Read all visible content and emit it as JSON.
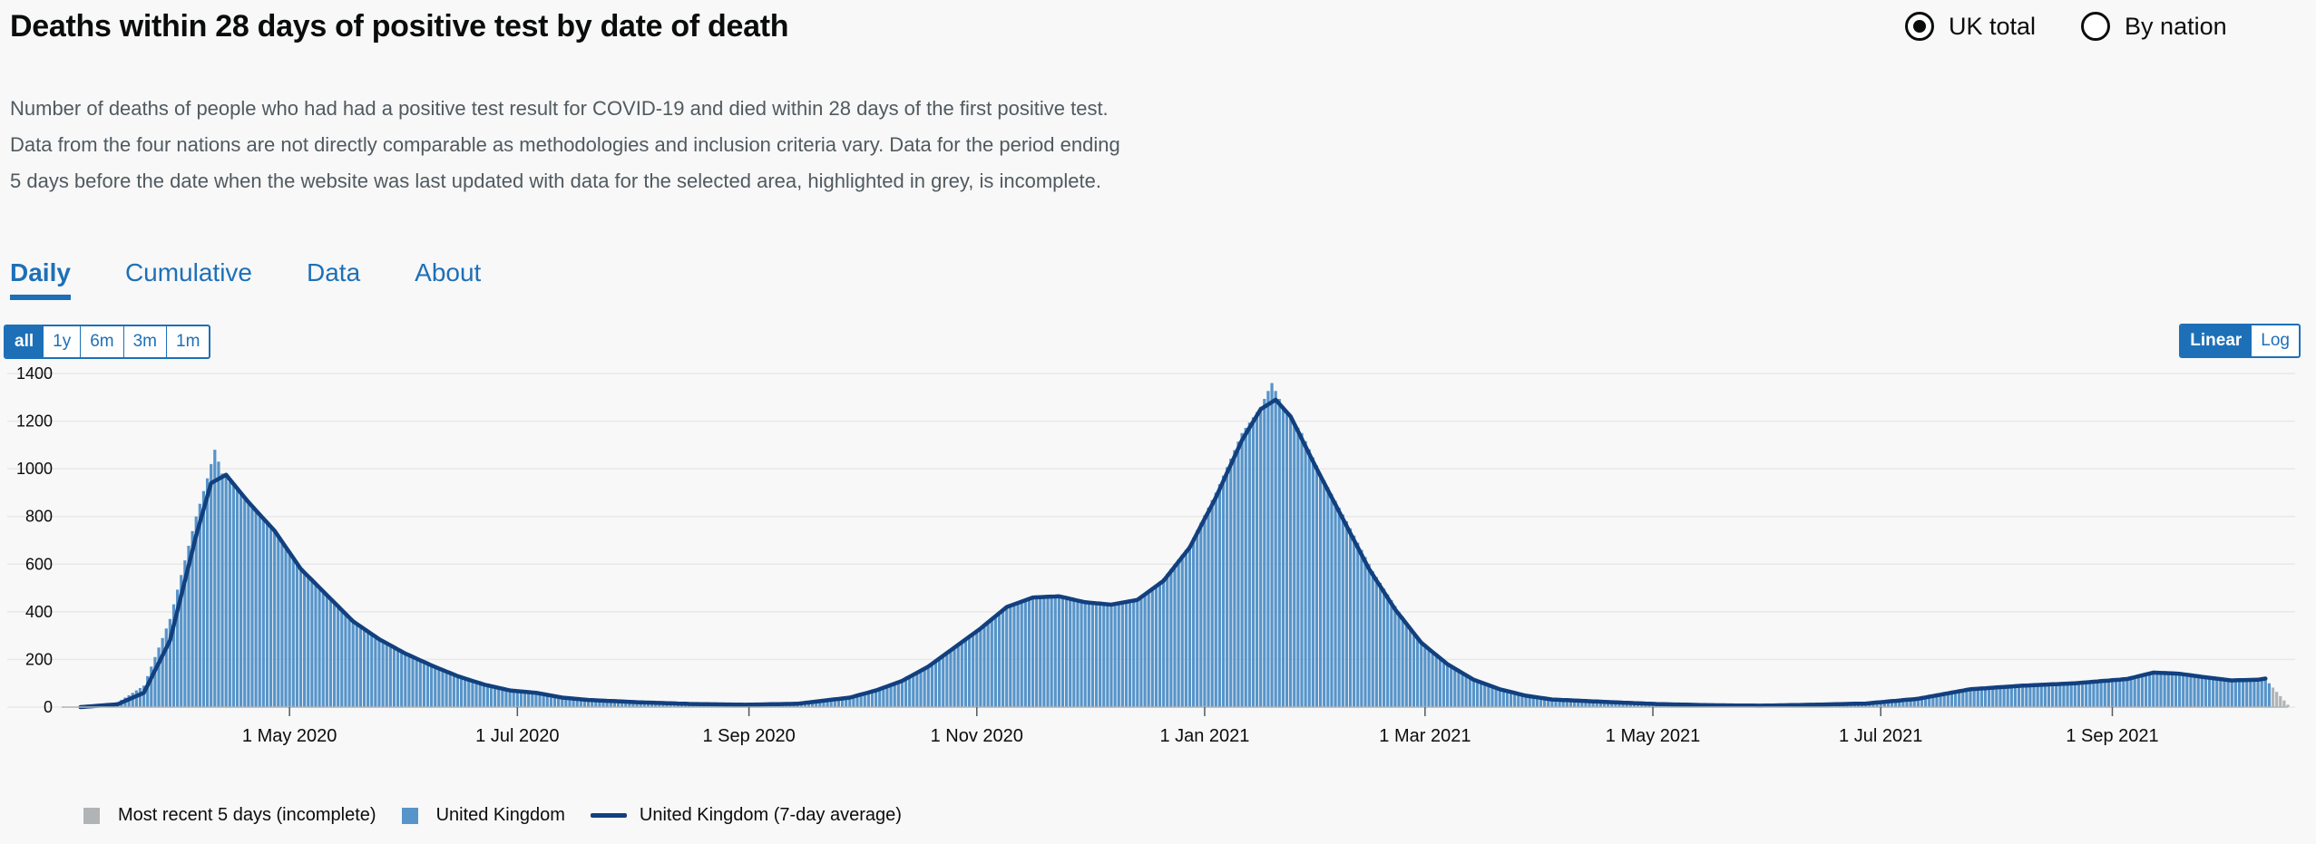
{
  "page": {
    "title": "Deaths within 28 days of positive test by date of death",
    "description": "Number of deaths of people who had had a positive test result for COVID-19 and died within 28 days of the first positive test. Data from the four nations are not directly comparable as methodologies and inclusion criteria vary. Data for the period ending 5 days before the date when the website was last updated with data for the selected area, highlighted in grey, is incomplete."
  },
  "area_options": [
    {
      "label": "UK total",
      "selected": true
    },
    {
      "label": "By nation",
      "selected": false
    }
  ],
  "tabs": [
    {
      "label": "Daily",
      "active": true
    },
    {
      "label": "Cumulative",
      "active": false
    },
    {
      "label": "Data",
      "active": false
    },
    {
      "label": "About",
      "active": false
    }
  ],
  "time_range": [
    {
      "label": "all",
      "active": true
    },
    {
      "label": "1y",
      "active": false
    },
    {
      "label": "6m",
      "active": false
    },
    {
      "label": "3m",
      "active": false
    },
    {
      "label": "1m",
      "active": false
    }
  ],
  "scale": [
    {
      "label": "Linear",
      "active": true
    },
    {
      "label": "Log",
      "active": false
    }
  ],
  "colors": {
    "bar": "#5694ca",
    "bar_edge": "#1d70b8",
    "line": "#12407f",
    "incomplete": "#b1b4b6",
    "grid": "#e8e8e8",
    "link": "#1d70b8"
  },
  "chart_data": {
    "type": "bar",
    "title": "Deaths within 28 days of positive test by date of death",
    "xlabel": "",
    "ylabel": "",
    "x_range": [
      "2020-03-01",
      "2021-10-18"
    ],
    "ylim": [
      0,
      1400
    ],
    "yticks": [
      "0",
      "200",
      "400",
      "600",
      "800",
      "1000",
      "1200",
      "1400"
    ],
    "xticks": [
      {
        "date": "2020-05-01",
        "label": "1 May 2020"
      },
      {
        "date": "2020-07-01",
        "label": "1 Jul 2020"
      },
      {
        "date": "2020-09-01",
        "label": "1 Sep 2020"
      },
      {
        "date": "2020-11-01",
        "label": "1 Nov 2020"
      },
      {
        "date": "2021-01-01",
        "label": "1 Jan 2021"
      },
      {
        "date": "2021-03-01",
        "label": "1 Mar 2021"
      },
      {
        "date": "2021-05-01",
        "label": "1 May 2021"
      },
      {
        "date": "2021-07-01",
        "label": "1 Jul 2021"
      },
      {
        "date": "2021-09-01",
        "label": "1 Sep 2021"
      }
    ],
    "grid": true,
    "legend_position": "bottom-left",
    "incomplete_days": 5,
    "series": [
      {
        "name": "Most recent 5 days (incomplete)",
        "kind": "bar"
      },
      {
        "name": "United Kingdom",
        "kind": "bar"
      },
      {
        "name": "United Kingdom (7-day average)",
        "kind": "line"
      }
    ],
    "daily_deaths": [
      {
        "date": "2020-03-02",
        "value": 0
      },
      {
        "date": "2020-03-09",
        "value": 3
      },
      {
        "date": "2020-03-16",
        "value": 20
      },
      {
        "date": "2020-03-23",
        "value": 90
      },
      {
        "date": "2020-03-30",
        "value": 370
      },
      {
        "date": "2020-04-06",
        "value": 800
      },
      {
        "date": "2020-04-09",
        "value": 960
      },
      {
        "date": "2020-04-11",
        "value": 1080
      },
      {
        "date": "2020-04-13",
        "value": 980
      },
      {
        "date": "2020-04-20",
        "value": 860
      },
      {
        "date": "2020-04-27",
        "value": 740
      },
      {
        "date": "2020-05-04",
        "value": 580
      },
      {
        "date": "2020-05-11",
        "value": 470
      },
      {
        "date": "2020-05-18",
        "value": 360
      },
      {
        "date": "2020-05-25",
        "value": 290
      },
      {
        "date": "2020-06-01",
        "value": 230
      },
      {
        "date": "2020-06-08",
        "value": 175
      },
      {
        "date": "2020-06-15",
        "value": 130
      },
      {
        "date": "2020-06-22",
        "value": 95
      },
      {
        "date": "2020-06-29",
        "value": 70
      },
      {
        "date": "2020-07-06",
        "value": 52
      },
      {
        "date": "2020-07-13",
        "value": 38
      },
      {
        "date": "2020-07-20",
        "value": 28
      },
      {
        "date": "2020-08-03",
        "value": 18
      },
      {
        "date": "2020-08-17",
        "value": 12
      },
      {
        "date": "2020-08-31",
        "value": 10
      },
      {
        "date": "2020-09-14",
        "value": 15
      },
      {
        "date": "2020-09-28",
        "value": 45
      },
      {
        "date": "2020-10-05",
        "value": 70
      },
      {
        "date": "2020-10-12",
        "value": 110
      },
      {
        "date": "2020-10-19",
        "value": 170
      },
      {
        "date": "2020-10-26",
        "value": 250
      },
      {
        "date": "2020-11-02",
        "value": 330
      },
      {
        "date": "2020-11-07",
        "value": 400
      },
      {
        "date": "2020-11-16",
        "value": 460
      },
      {
        "date": "2020-11-23",
        "value": 470
      },
      {
        "date": "2020-11-30",
        "value": 440
      },
      {
        "date": "2020-12-07",
        "value": 430
      },
      {
        "date": "2020-12-14",
        "value": 450
      },
      {
        "date": "2020-12-21",
        "value": 540
      },
      {
        "date": "2020-12-28",
        "value": 680
      },
      {
        "date": "2021-01-04",
        "value": 900
      },
      {
        "date": "2021-01-11",
        "value": 1150
      },
      {
        "date": "2021-01-16",
        "value": 1260
      },
      {
        "date": "2021-01-19",
        "value": 1360
      },
      {
        "date": "2021-01-22",
        "value": 1260
      },
      {
        "date": "2021-01-27",
        "value": 1150
      },
      {
        "date": "2021-02-01",
        "value": 980
      },
      {
        "date": "2021-02-08",
        "value": 780
      },
      {
        "date": "2021-02-15",
        "value": 570
      },
      {
        "date": "2021-02-22",
        "value": 400
      },
      {
        "date": "2021-03-01",
        "value": 250
      },
      {
        "date": "2021-03-08",
        "value": 170
      },
      {
        "date": "2021-03-15",
        "value": 110
      },
      {
        "date": "2021-03-22",
        "value": 70
      },
      {
        "date": "2021-03-29",
        "value": 45
      },
      {
        "date": "2021-04-05",
        "value": 30
      },
      {
        "date": "2021-04-19",
        "value": 20
      },
      {
        "date": "2021-05-03",
        "value": 12
      },
      {
        "date": "2021-05-17",
        "value": 8
      },
      {
        "date": "2021-05-31",
        "value": 6
      },
      {
        "date": "2021-06-14",
        "value": 10
      },
      {
        "date": "2021-06-28",
        "value": 15
      },
      {
        "date": "2021-07-12",
        "value": 35
      },
      {
        "date": "2021-07-26",
        "value": 75
      },
      {
        "date": "2021-08-09",
        "value": 90
      },
      {
        "date": "2021-08-23",
        "value": 100
      },
      {
        "date": "2021-09-06",
        "value": 120
      },
      {
        "date": "2021-09-13",
        "value": 150
      },
      {
        "date": "2021-09-20",
        "value": 140
      },
      {
        "date": "2021-09-27",
        "value": 125
      },
      {
        "date": "2021-10-04",
        "value": 110
      },
      {
        "date": "2021-10-11",
        "value": 125
      },
      {
        "date": "2021-10-13",
        "value": 100
      },
      {
        "date": "2021-10-18",
        "value": 10
      }
    ],
    "rolling_average": [
      {
        "date": "2020-03-06",
        "value": 0
      },
      {
        "date": "2020-03-16",
        "value": 12
      },
      {
        "date": "2020-03-23",
        "value": 60
      },
      {
        "date": "2020-03-30",
        "value": 280
      },
      {
        "date": "2020-04-06",
        "value": 720
      },
      {
        "date": "2020-04-10",
        "value": 940
      },
      {
        "date": "2020-04-14",
        "value": 975
      },
      {
        "date": "2020-04-20",
        "value": 860
      },
      {
        "date": "2020-04-27",
        "value": 740
      },
      {
        "date": "2020-05-04",
        "value": 580
      },
      {
        "date": "2020-05-11",
        "value": 470
      },
      {
        "date": "2020-05-18",
        "value": 360
      },
      {
        "date": "2020-05-25",
        "value": 285
      },
      {
        "date": "2020-06-01",
        "value": 225
      },
      {
        "date": "2020-06-08",
        "value": 175
      },
      {
        "date": "2020-06-15",
        "value": 130
      },
      {
        "date": "2020-06-22",
        "value": 95
      },
      {
        "date": "2020-06-29",
        "value": 70
      },
      {
        "date": "2020-07-06",
        "value": 60
      },
      {
        "date": "2020-07-13",
        "value": 40
      },
      {
        "date": "2020-07-20",
        "value": 30
      },
      {
        "date": "2020-08-03",
        "value": 20
      },
      {
        "date": "2020-08-17",
        "value": 13
      },
      {
        "date": "2020-08-31",
        "value": 10
      },
      {
        "date": "2020-09-14",
        "value": 14
      },
      {
        "date": "2020-09-28",
        "value": 40
      },
      {
        "date": "2020-10-05",
        "value": 70
      },
      {
        "date": "2020-10-12",
        "value": 110
      },
      {
        "date": "2020-10-19",
        "value": 170
      },
      {
        "date": "2020-10-26",
        "value": 250
      },
      {
        "date": "2020-11-02",
        "value": 330
      },
      {
        "date": "2020-11-09",
        "value": 420
      },
      {
        "date": "2020-11-16",
        "value": 460
      },
      {
        "date": "2020-11-23",
        "value": 465
      },
      {
        "date": "2020-11-30",
        "value": 440
      },
      {
        "date": "2020-12-07",
        "value": 430
      },
      {
        "date": "2020-12-14",
        "value": 450
      },
      {
        "date": "2020-12-21",
        "value": 530
      },
      {
        "date": "2020-12-28",
        "value": 670
      },
      {
        "date": "2021-01-04",
        "value": 880
      },
      {
        "date": "2021-01-11",
        "value": 1120
      },
      {
        "date": "2021-01-16",
        "value": 1250
      },
      {
        "date": "2021-01-20",
        "value": 1290
      },
      {
        "date": "2021-01-24",
        "value": 1220
      },
      {
        "date": "2021-01-31",
        "value": 1000
      },
      {
        "date": "2021-02-07",
        "value": 790
      },
      {
        "date": "2021-02-14",
        "value": 580
      },
      {
        "date": "2021-02-21",
        "value": 410
      },
      {
        "date": "2021-02-28",
        "value": 270
      },
      {
        "date": "2021-03-07",
        "value": 180
      },
      {
        "date": "2021-03-14",
        "value": 115
      },
      {
        "date": "2021-03-21",
        "value": 75
      },
      {
        "date": "2021-03-28",
        "value": 48
      },
      {
        "date": "2021-04-04",
        "value": 32
      },
      {
        "date": "2021-04-18",
        "value": 22
      },
      {
        "date": "2021-05-02",
        "value": 13
      },
      {
        "date": "2021-05-16",
        "value": 8
      },
      {
        "date": "2021-05-30",
        "value": 6
      },
      {
        "date": "2021-06-13",
        "value": 10
      },
      {
        "date": "2021-06-27",
        "value": 15
      },
      {
        "date": "2021-07-11",
        "value": 35
      },
      {
        "date": "2021-07-25",
        "value": 75
      },
      {
        "date": "2021-08-08",
        "value": 90
      },
      {
        "date": "2021-08-22",
        "value": 100
      },
      {
        "date": "2021-09-05",
        "value": 118
      },
      {
        "date": "2021-09-12",
        "value": 145
      },
      {
        "date": "2021-09-19",
        "value": 140
      },
      {
        "date": "2021-09-26",
        "value": 125
      },
      {
        "date": "2021-10-03",
        "value": 112
      },
      {
        "date": "2021-10-10",
        "value": 115
      },
      {
        "date": "2021-10-12",
        "value": 120
      }
    ]
  }
}
